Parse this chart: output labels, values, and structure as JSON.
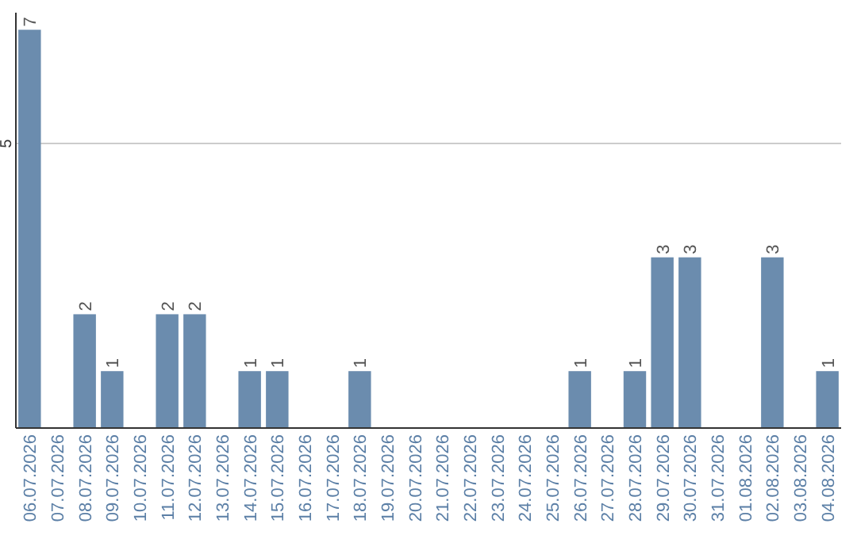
{
  "chart_data": {
    "type": "bar",
    "categories": [
      "06.07.2026",
      "07.07.2026",
      "08.07.2026",
      "09.07.2026",
      "10.07.2026",
      "11.07.2026",
      "12.07.2026",
      "13.07.2026",
      "14.07.2026",
      "15.07.2026",
      "16.07.2026",
      "17.07.2026",
      "18.07.2026",
      "19.07.2026",
      "20.07.2026",
      "21.07.2026",
      "22.07.2026",
      "23.07.2026",
      "24.07.2026",
      "25.07.2026",
      "26.07.2026",
      "27.07.2026",
      "28.07.2026",
      "29.07.2026",
      "30.07.2026",
      "31.07.2026",
      "01.08.2026",
      "02.08.2026",
      "03.08.2026",
      "04.08.2026"
    ],
    "values": [
      7,
      0,
      2,
      1,
      0,
      2,
      2,
      0,
      1,
      1,
      0,
      0,
      1,
      0,
      0,
      0,
      0,
      0,
      0,
      0,
      1,
      0,
      1,
      3,
      3,
      0,
      0,
      3,
      0,
      1
    ],
    "value_labels": [
      "7",
      null,
      "2",
      "1",
      null,
      "2",
      "2",
      null,
      "1",
      "1",
      null,
      null,
      "1",
      null,
      null,
      null,
      null,
      null,
      null,
      null,
      "1",
      null,
      "1",
      "3",
      "3",
      null,
      null,
      "3",
      null,
      "1"
    ],
    "color": "#6b8cae",
    "ylim": [
      0,
      7.3
    ],
    "yticks": [
      5
    ],
    "grid": "y"
  }
}
